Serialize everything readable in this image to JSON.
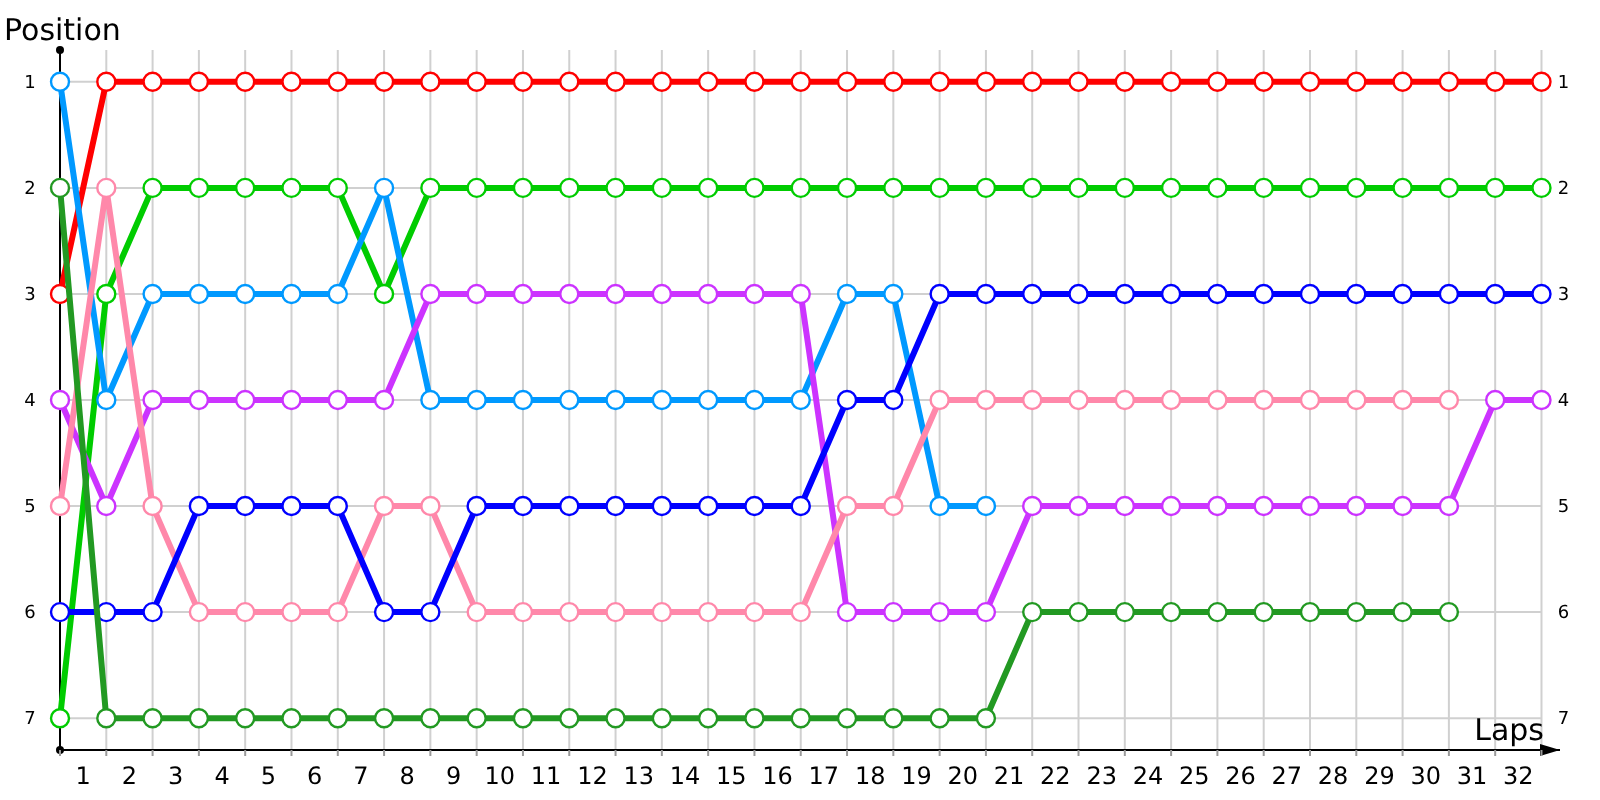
{
  "chart_data": {
    "type": "line",
    "xlabel": "Laps",
    "ylabel": "Position",
    "marker": "circle",
    "line_style": "solid",
    "grid": true,
    "x": [
      0,
      1,
      2,
      3,
      4,
      5,
      6,
      7,
      8,
      9,
      10,
      11,
      12,
      13,
      14,
      15,
      16,
      17,
      18,
      19,
      20,
      21,
      22,
      23,
      24,
      25,
      26,
      27,
      28,
      29,
      30,
      31,
      32
    ],
    "xlim": [
      0,
      32.4
    ],
    "xticks": [
      {
        "value": 0,
        "label": null
      },
      {
        "value": 0.5,
        "label": "1"
      },
      {
        "value": 1,
        "label": null
      },
      {
        "value": 1.5,
        "label": "2"
      },
      {
        "value": 2,
        "label": null
      },
      {
        "value": 2.5,
        "label": "3"
      },
      {
        "value": 3,
        "label": null
      },
      {
        "value": 3.5,
        "label": "4"
      },
      {
        "value": 4,
        "label": null
      },
      {
        "value": 4.5,
        "label": "5"
      },
      {
        "value": 5,
        "label": null
      },
      {
        "value": 5.5,
        "label": "6"
      },
      {
        "value": 6,
        "label": null
      },
      {
        "value": 6.5,
        "label": "7"
      },
      {
        "value": 7,
        "label": null
      },
      {
        "value": 7.5,
        "label": "8"
      },
      {
        "value": 8,
        "label": null
      },
      {
        "value": 8.5,
        "label": "9"
      },
      {
        "value": 9,
        "label": null
      },
      {
        "value": 9.5,
        "label": "10"
      },
      {
        "value": 10,
        "label": null
      },
      {
        "value": 10.5,
        "label": "11"
      },
      {
        "value": 11,
        "label": null
      },
      {
        "value": 11.5,
        "label": "12"
      },
      {
        "value": 12,
        "label": null
      },
      {
        "value": 12.5,
        "label": "13"
      },
      {
        "value": 13,
        "label": null
      },
      {
        "value": 13.5,
        "label": "14"
      },
      {
        "value": 14,
        "label": null
      },
      {
        "value": 14.5,
        "label": "15"
      },
      {
        "value": 15,
        "label": null
      },
      {
        "value": 15.5,
        "label": "16"
      },
      {
        "value": 16,
        "label": null
      },
      {
        "value": 16.5,
        "label": "17"
      },
      {
        "value": 17,
        "label": null
      },
      {
        "value": 17.5,
        "label": "18"
      },
      {
        "value": 18,
        "label": null
      },
      {
        "value": 18.5,
        "label": "19"
      },
      {
        "value": 19,
        "label": null
      },
      {
        "value": 19.5,
        "label": "20"
      },
      {
        "value": 20,
        "label": null
      },
      {
        "value": 20.5,
        "label": "21"
      },
      {
        "value": 21,
        "label": null
      },
      {
        "value": 21.5,
        "label": "22"
      },
      {
        "value": 22,
        "label": null
      },
      {
        "value": 22.5,
        "label": "23"
      },
      {
        "value": 23,
        "label": null
      },
      {
        "value": 23.5,
        "label": "24"
      },
      {
        "value": 24,
        "label": null
      },
      {
        "value": 24.5,
        "label": "25"
      },
      {
        "value": 25,
        "label": null
      },
      {
        "value": 25.5,
        "label": "26"
      },
      {
        "value": 26,
        "label": null
      },
      {
        "value": 26.5,
        "label": "27"
      },
      {
        "value": 27,
        "label": null
      },
      {
        "value": 27.5,
        "label": "28"
      },
      {
        "value": 28,
        "label": null
      },
      {
        "value": 28.5,
        "label": "29"
      },
      {
        "value": 29,
        "label": null
      },
      {
        "value": 29.5,
        "label": "30"
      },
      {
        "value": 30,
        "label": null
      },
      {
        "value": 30.5,
        "label": "31"
      },
      {
        "value": 31,
        "label": null
      },
      {
        "value": 31.5,
        "label": "32"
      },
      {
        "value": 32,
        "label": null
      }
    ],
    "ylim": [
      7.3,
      0.7
    ],
    "yticks": [
      1,
      2,
      3,
      4,
      5,
      6,
      7
    ],
    "y2lim": [
      7.3,
      0.7
    ],
    "y2ticks": [
      1,
      2,
      3,
      4,
      5,
      6,
      7
    ],
    "series": [
      {
        "color": "#ff0000",
        "values": [
          3,
          1,
          1,
          1,
          1,
          1,
          1,
          1,
          1,
          1,
          1,
          1,
          1,
          1,
          1,
          1,
          1,
          1,
          1,
          1,
          1,
          1,
          1,
          1,
          1,
          1,
          1,
          1,
          1,
          1,
          1,
          1,
          1
        ]
      },
      {
        "color": "#00cc00",
        "values": [
          7,
          3,
          2,
          2,
          2,
          2,
          2,
          3,
          2,
          2,
          2,
          2,
          2,
          2,
          2,
          2,
          2,
          2,
          2,
          2,
          2,
          2,
          2,
          2,
          2,
          2,
          2,
          2,
          2,
          2,
          2,
          2,
          2
        ]
      },
      {
        "color": "#0099ff",
        "values": [
          1,
          4,
          3,
          3,
          3,
          3,
          3,
          2,
          4,
          4,
          4,
          4,
          4,
          4,
          4,
          4,
          4,
          3,
          3,
          5,
          5,
          null,
          null,
          null,
          null,
          null,
          null,
          null,
          null,
          null,
          null,
          null,
          null
        ]
      },
      {
        "color": "#cc33ff",
        "values": [
          4,
          5,
          4,
          4,
          4,
          4,
          4,
          4,
          3,
          3,
          3,
          3,
          3,
          3,
          3,
          3,
          3,
          6,
          6,
          6,
          6,
          5,
          5,
          5,
          5,
          5,
          5,
          5,
          5,
          5,
          5,
          4,
          4
        ]
      },
      {
        "color": "#ff88aa",
        "values": [
          5,
          2,
          5,
          6,
          6,
          6,
          6,
          5,
          5,
          6,
          6,
          6,
          6,
          6,
          6,
          6,
          6,
          5,
          5,
          4,
          4,
          4,
          4,
          4,
          4,
          4,
          4,
          4,
          4,
          4,
          4,
          null,
          null
        ]
      },
      {
        "color": "#0000ff",
        "values": [
          6,
          6,
          6,
          5,
          5,
          5,
          5,
          6,
          6,
          5,
          5,
          5,
          5,
          5,
          5,
          5,
          5,
          4,
          4,
          3,
          3,
          3,
          3,
          3,
          3,
          3,
          3,
          3,
          3,
          3,
          3,
          3,
          3
        ]
      },
      {
        "color": "#229922",
        "values": [
          2,
          7,
          7,
          7,
          7,
          7,
          7,
          7,
          7,
          7,
          7,
          7,
          7,
          7,
          7,
          7,
          7,
          7,
          7,
          7,
          7,
          6,
          6,
          6,
          6,
          6,
          6,
          6,
          6,
          6,
          6,
          null,
          null
        ]
      }
    ]
  }
}
